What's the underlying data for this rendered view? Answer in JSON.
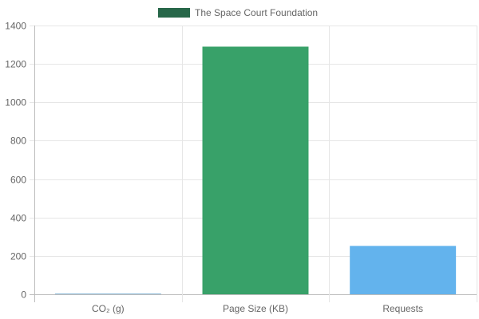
{
  "chart_data": {
    "type": "bar",
    "categories": [
      "CO₂ (g)",
      "Page Size (KB)",
      "Requests"
    ],
    "series": [
      {
        "name": "The Space Court Foundation",
        "values": [
          0.5,
          1290,
          252
        ]
      }
    ],
    "bar_colors": [
      "#1f77b4",
      "#38a169",
      "#63b3ed"
    ],
    "legend_color": "#276749",
    "ylim": [
      0,
      1400
    ],
    "yticks": [
      0,
      200,
      400,
      600,
      800,
      1000,
      1200,
      1400
    ],
    "grid": true,
    "legend_position": "top-center",
    "xlabel": "",
    "ylabel": ""
  }
}
